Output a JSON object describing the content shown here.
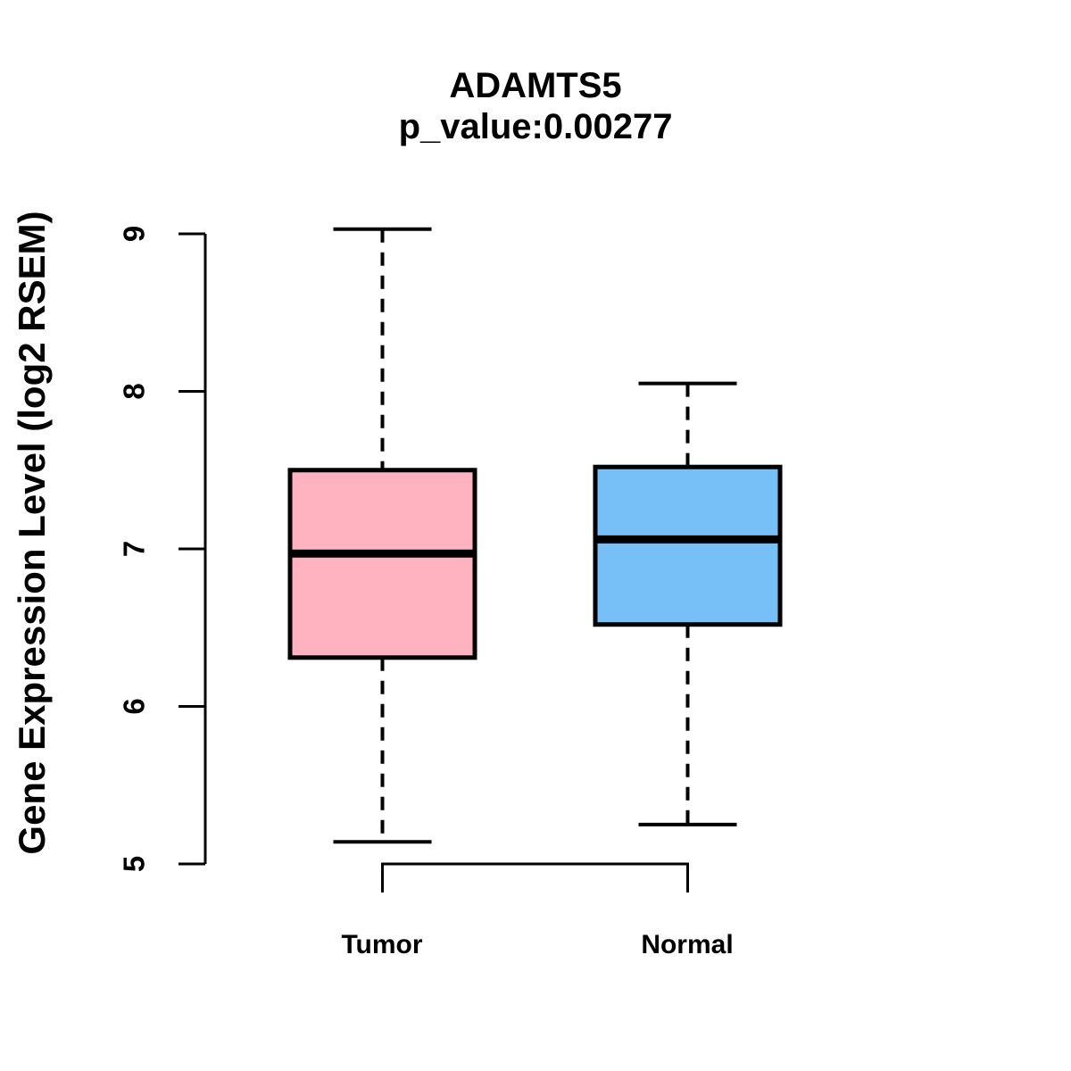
{
  "chart_data": {
    "type": "boxplot",
    "title": "ADAMTS5",
    "subtitle": "p_value:0.00277",
    "ylabel": "Gene Expression Level (log2 RSEM)",
    "xlabel": "",
    "categories": [
      "Tumor",
      "Normal"
    ],
    "y_ticks": [
      5,
      6,
      7,
      8,
      9
    ],
    "ylim": [
      4.8,
      9.05
    ],
    "grid": false,
    "legend": "none",
    "series": [
      {
        "name": "Tumor",
        "color": "#FFB3C1",
        "min": 5.14,
        "q1": 6.31,
        "median": 6.97,
        "q3": 7.5,
        "max": 9.03
      },
      {
        "name": "Normal",
        "color": "#77C0F7",
        "min": 5.25,
        "q1": 6.52,
        "median": 7.06,
        "q3": 7.52,
        "max": 8.05
      }
    ],
    "colors": {
      "box_stroke": "#000000",
      "tumor_fill": "#FFB3C1",
      "normal_fill": "#77C0F7"
    }
  }
}
